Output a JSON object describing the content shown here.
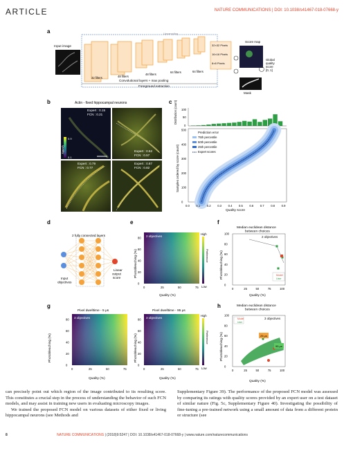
{
  "header": {
    "left": "ARTICLE",
    "right": "NATURE COMMUNICATIONS | DOI: 10.1038/s41467-018-07668-y"
  },
  "panel_labels": {
    "a": "a",
    "b": "b",
    "c": "c",
    "d": "d",
    "e": "e",
    "f": "f",
    "g": "g",
    "h": "h"
  },
  "panel_a": {
    "input": "Input image",
    "filters_32": "32 filters",
    "filters_48": "48 filters",
    "filters_48b": "48 filters",
    "filters_64a": "64 filters",
    "filters_64b": "64 filters",
    "conv": "Convolutional layers + max pooling",
    "fg": "Foreground extraction",
    "pix32": "32×32 Pixels",
    "pix16": "16×16 Pixels",
    "pix8": "8×8 Pixels",
    "upsampling": "Upsampling",
    "score_map": "Score map",
    "global": "Global quality score [0, 1]",
    "mask": "Mask"
  },
  "panel_b": {
    "title": "Actin - fixed hippocampal neurons",
    "q1": "Expert : 0.15",
    "f1": "FCN : 0.21",
    "q2": "Expert : 0.52",
    "f2": "FCN : 0.57",
    "q3": "Expert : 0.79",
    "f3": "FCN : 0.77",
    "q4": "Expert : 0.87",
    "f4": "FCN : 0.82",
    "cb_top": "0.9",
    "cb_bot": "0.1",
    "cb_label": "Quality"
  },
  "panel_c": {
    "ylabel_top": "Distribution (count)",
    "ylabel": "Samples ordered by score (count)",
    "xlabel": "Quality score",
    "legend": [
      "Prediction error",
      "75th percentile",
      "50th percentile",
      "25th percentile",
      "Expert scores"
    ],
    "hist_yticks": [
      "100",
      "50",
      "0"
    ],
    "yticks": [
      "500",
      "400",
      "300",
      "200",
      "100",
      "0"
    ],
    "xticks": [
      "0.0",
      "0.1",
      "0.2",
      "0.3",
      "0.4",
      "0.5",
      "0.6",
      "0.7",
      "0.8",
      "0.9"
    ]
  },
  "panel_d": {
    "title": "2 fully connected layers",
    "input": "Input objectives",
    "output": "Linear output score"
  },
  "panel_e": {
    "inner": "2 objectives",
    "ylabel": "Photobleaching (%)",
    "xlabel": "Quality (%)",
    "high": "High",
    "low": "Low",
    "pref": "Preference",
    "yticks": [
      "80",
      "60",
      "40",
      "20",
      "0"
    ],
    "xticks": [
      "0",
      "25",
      "50",
      "75"
    ]
  },
  "panel_f": {
    "title": "Median euclidean distance between choices",
    "inner": "2 objectives",
    "ylabel": "Photobleaching (%)",
    "xlabel": "Quality (%)",
    "yticks": [
      "100",
      "80",
      "60",
      "40",
      "20",
      "0"
    ],
    "xticks": [
      "0",
      "25",
      "50",
      "75",
      "100"
    ],
    "leg1": "Model",
    "leg2": "User"
  },
  "panel_g": {
    "title1": "Pixel dwelltime - 5 μs",
    "title2": "Pixel dwelltime - 95 μs",
    "inner": "3 objectives",
    "ylabel": "Photobleaching (%)",
    "xlabel": "Quality (%)",
    "high": "High",
    "low": "Low",
    "pref": "Preference",
    "yticks": [
      "80",
      "60",
      "40",
      "20",
      "0"
    ],
    "xticks": [
      "0",
      "25",
      "50",
      "75"
    ]
  },
  "panel_h": {
    "title": "Median euclidean distance between choices",
    "inner": "3 objectives",
    "ylabel": "Photobleaching (%)",
    "xlabel": "Quality (%)",
    "yticks": [
      "100",
      "80",
      "60",
      "40",
      "20",
      "0"
    ],
    "xticks": [
      "0",
      "25",
      "50",
      "75",
      "100"
    ],
    "l1": "25 μs",
    "l2": "95 μs",
    "leg1": "Model",
    "leg2": "User"
  },
  "colors": {
    "accent": "#e0442b",
    "green": "#2e9e44",
    "blue": "#2a66c8",
    "orange": "#f4a23b"
  },
  "text": {
    "col1": "can precisely point out which region of the image contributed to its resulting score. This constitutes a crucial step in the process of understanding the behavior of such FCN models, and may assist in training new users in evaluating microscopy images.",
    "col1b": "We trained the proposed FCN model on various datasets of either fixed or living hippocampal neurons (see Methods and",
    "col2": "Supplementary Figure 39). The performance of the proposed FCN model was assessed by comparing its ratings with quality scores provided by an expert user on a test dataset of similar nature (Fig. 5c, Supplementary Figure 40). Investigating the possibility of fine-tuning a pre-trained network using a small amount of data from a different protein or structure (see"
  },
  "footer": {
    "page": "8",
    "journal": "NATURE COMMUNICATIONS",
    "rest": "| (2018)9:5247 | DOI: 10.1038/s41467-018-07668-y | www.nature.com/naturecommunications"
  }
}
